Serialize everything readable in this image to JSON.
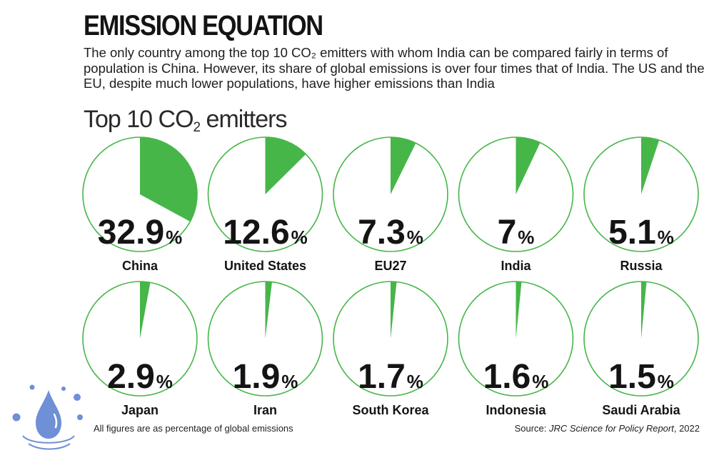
{
  "headline": "EMISSION EQUATION",
  "intro": "The only country among the top 10 CO₂ emitters with whom India can be compared fairly in terms of population is China. However, its share of global emissions is over four times that of India. The US and the EU, despite much lower populations, have higher emissions than India",
  "chart_heading": {
    "prefix": "Top 10 CO",
    "subscript": "2",
    "suffix": " emitters"
  },
  "footnote": "All figures are as percentage of global emissions",
  "source": {
    "prefix": "Source: ",
    "italic": "JRC Science for Policy Report",
    "suffix": ", 2022"
  },
  "colors": {
    "slice": "#46b649",
    "ring": "#46b649",
    "text": "#141414",
    "logo": "#6f8fd6"
  },
  "chart_data": {
    "type": "pie",
    "unit": "%",
    "items": [
      {
        "label": "China",
        "value": 32.9,
        "display": "32.9"
      },
      {
        "label": "United States",
        "value": 12.6,
        "display": "12.6"
      },
      {
        "label": "EU27",
        "value": 7.3,
        "display": "7.3"
      },
      {
        "label": "India",
        "value": 7,
        "display": "7"
      },
      {
        "label": "Russia",
        "value": 5.1,
        "display": "5.1"
      },
      {
        "label": "Japan",
        "value": 2.9,
        "display": "2.9"
      },
      {
        "label": "Iran",
        "value": 1.9,
        "display": "1.9"
      },
      {
        "label": "South Korea",
        "value": 1.7,
        "display": "1.7"
      },
      {
        "label": "Indonesia",
        "value": 1.6,
        "display": "1.6"
      },
      {
        "label": "Saudi Arabia",
        "value": 1.5,
        "display": "1.5"
      }
    ]
  }
}
